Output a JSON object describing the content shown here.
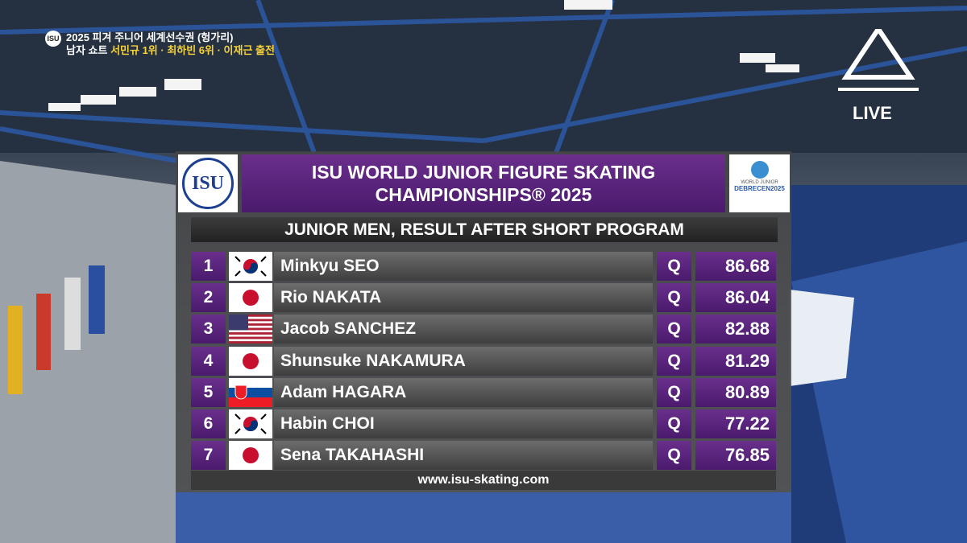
{
  "caption": {
    "line1": "2025 피겨 주니어 세계선수권 (헝가리)",
    "line2_white": "남자 쇼트",
    "line2_yellow": "서민규 1위 · 최하빈 6위 · 이재근 출전"
  },
  "isu_logo": "ISU",
  "event_logo": {
    "top": "WORLD JUNIOR",
    "bottom": "DEBRECEN2025"
  },
  "title": "ISU WORLD JUNIOR FIGURE SKATING CHAMPIONSHIPS® 2025",
  "subtitle": "JUNIOR MEN, RESULT AFTER SHORT PROGRAM",
  "table": {
    "rows": [
      [
        1,
        "Minkyu SEO",
        "Q",
        86.68
      ],
      [
        2,
        "Rio NAKATA",
        "Q",
        86.04
      ],
      [
        3,
        "Jacob SANCHEZ",
        "Q",
        82.88
      ],
      [
        4,
        "Shunsuke NAKAMURA",
        "Q",
        81.29
      ],
      [
        5,
        "Adam HAGARA",
        "Q",
        80.89
      ],
      [
        6,
        "Habin CHOI",
        "Q",
        77.22
      ],
      [
        7,
        "Sena TAKAHASHI",
        "Q",
        76.85
      ]
    ]
  },
  "website": "www.isu-skating.com",
  "broadcaster": {
    "live": "LIVE"
  }
}
